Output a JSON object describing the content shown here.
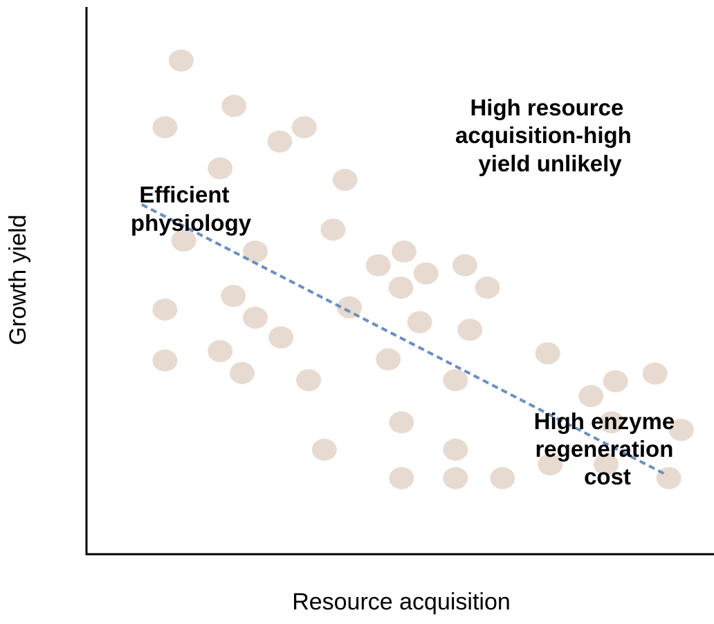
{
  "chart_data": {
    "type": "scatter",
    "x_label": "Resource acquisition",
    "y_label": "Growth yield",
    "xlim": [
      0,
      100
    ],
    "ylim": [
      0,
      100
    ],
    "color": "#e7dbd1",
    "x": [
      15.1,
      23.5,
      12.5,
      30.8,
      34.7,
      21.3,
      41.2,
      15.5,
      39.3,
      26.9,
      50.6,
      46.5,
      54.1,
      60.3,
      50.1,
      63.9,
      12.5,
      23.4,
      26.9,
      41.9,
      53.1,
      61.1,
      31.0,
      12.5,
      21.3,
      24.8,
      35.4,
      48.1,
      58.8,
      73.5,
      80.4,
      84.3,
      90.6,
      50.2,
      83.7,
      94.8,
      37.9,
      58.8,
      73.9,
      82.8,
      50.2,
      58.8,
      66.3,
      92.8
    ],
    "values": [
      90.2,
      81.9,
      78.0,
      75.4,
      78.0,
      70.5,
      68.4,
      57.3,
      59.3,
      55.3,
      55.3,
      52.8,
      51.3,
      52.8,
      48.7,
      48.7,
      44.7,
      47.2,
      43.2,
      45.1,
      42.4,
      41.0,
      39.6,
      35.4,
      37.1,
      33.1,
      31.8,
      35.6,
      31.8,
      36.7,
      28.9,
      31.6,
      33.0,
      24.1,
      24.1,
      22.7,
      19.1,
      19.1,
      16.4,
      16.4,
      13.9,
      13.9,
      13.9,
      13.9
    ],
    "trend_line": {
      "color": "#6b8fbf",
      "x": [
        8.8,
        92.6
      ],
      "values": [
        63.9,
        14.4
      ]
    },
    "annotations": [
      {
        "lines": [
          "High resource",
          "acquisition-high",
          "yield unlikely"
        ]
      },
      {
        "lines": [
          "Efficient",
          "physiology"
        ]
      },
      {
        "lines": [
          "High enzyme",
          "regeneration",
          "cost"
        ]
      }
    ]
  }
}
